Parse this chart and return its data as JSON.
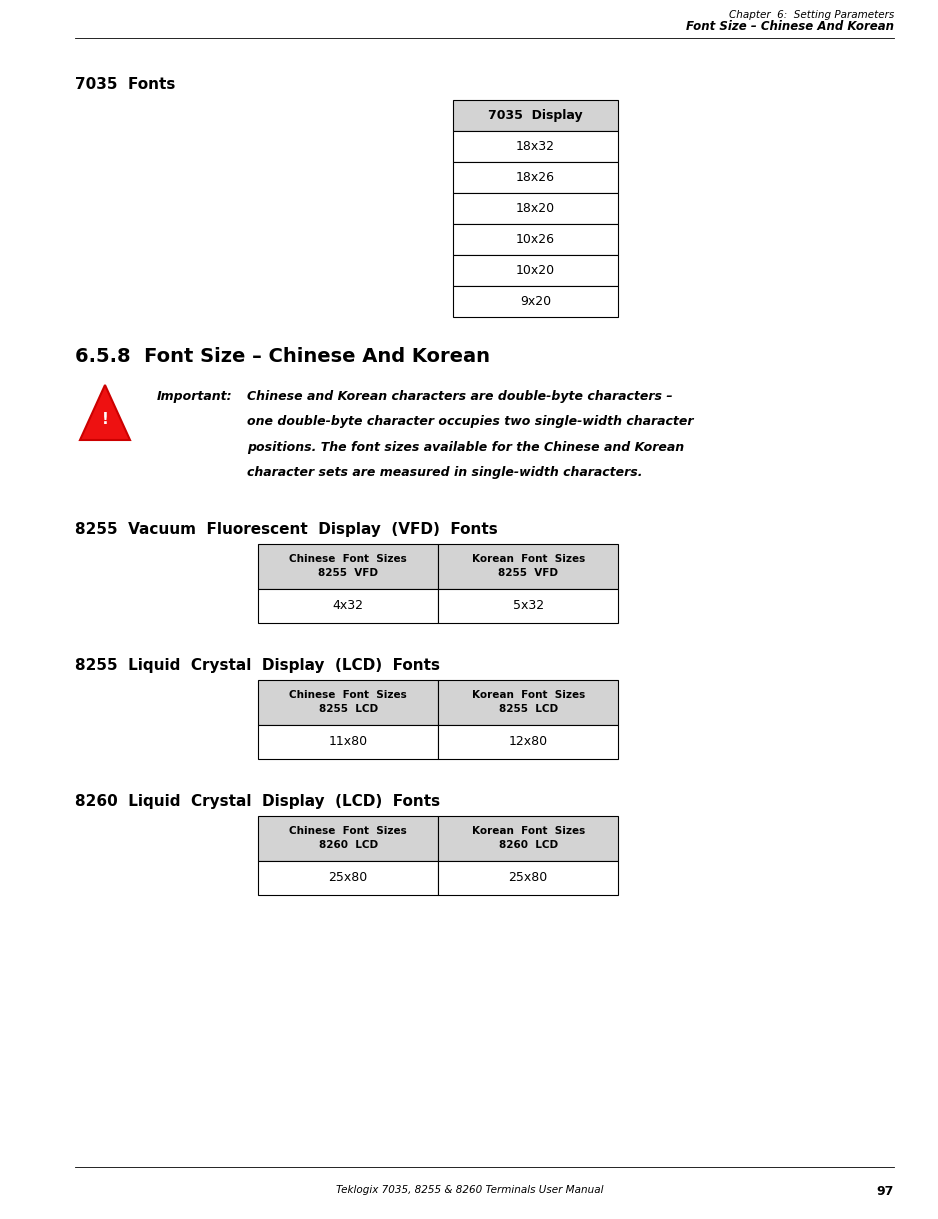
{
  "page_width": 9.19,
  "page_height": 11.97,
  "bg_color": "#ffffff",
  "header_line1": "Chapter  6:  Setting Parameters",
  "header_line2": "Font Size – Chinese And Korean",
  "section_title": "7035  Fonts",
  "table1_header": "7035  Display",
  "table1_rows": [
    "18x32",
    "18x26",
    "18x20",
    "10x26",
    "10x20",
    "9x20"
  ],
  "section_heading": "6.5.8  Font Size – Chinese And Korean",
  "important_label": "Important:",
  "important_text_line1": "Chinese and Korean characters are double-byte characters –",
  "important_text_line2": "one double-byte character occupies two single-width character",
  "important_text_line3": "positions. The font sizes available for the Chinese and Korean",
  "important_text_line4": "character sets are measured in single-width characters.",
  "section2_title": "8255  Vacuum  Fluorescent  Display  (VFD)  Fonts",
  "table2_col1_header1": "Chinese  Font  Sizes",
  "table2_col1_header2": "8255  VFD",
  "table2_col2_header1": "Korean  Font  Sizes",
  "table2_col2_header2": "8255  VFD",
  "table2_row": [
    "4x32",
    "5x32"
  ],
  "section3_title": "8255  Liquid  Crystal  Display  (LCD)  Fonts",
  "table3_col1_header1": "Chinese  Font  Sizes",
  "table3_col1_header2": "8255  LCD",
  "table3_col2_header1": "Korean  Font  Sizes",
  "table3_col2_header2": "8255  LCD",
  "table3_row": [
    "11x80",
    "12x80"
  ],
  "section4_title": "8260  Liquid  Crystal  Display  (LCD)  Fonts",
  "table4_col1_header1": "Chinese  Font  Sizes",
  "table4_col1_header2": "8260  LCD",
  "table4_col2_header1": "Korean  Font  Sizes",
  "table4_col2_header2": "8260  LCD",
  "table4_row": [
    "25x80",
    "25x80"
  ],
  "footer_text": "Teklogix 7035, 8255 & 8260 Terminals User Manual",
  "footer_page": "97",
  "text_color": "#000000",
  "table_header_bg": "#d3d3d3",
  "table_border_color": "#000000"
}
